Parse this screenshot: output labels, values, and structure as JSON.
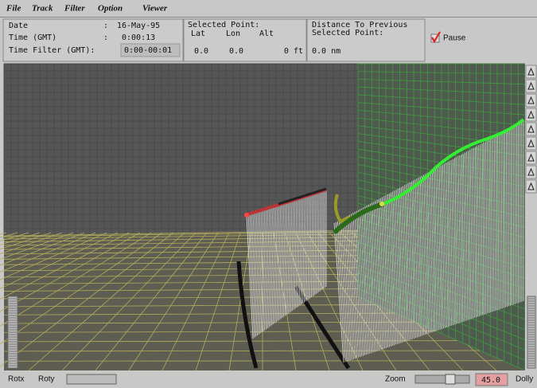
{
  "menu": [
    "File",
    "Track",
    "Filter",
    "Option",
    "Viewer"
  ],
  "info": {
    "rows": [
      {
        "label": "Date",
        "sep": ":",
        "value": "16-May-95"
      },
      {
        "label": "Time (GMT)",
        "sep": ":",
        "value": "0:00:13"
      },
      {
        "label": "Time Filter (GMT):",
        "value": "0:00-00:01"
      }
    ],
    "selected": {
      "title": "Selected Point:",
      "columns": [
        "Lat",
        "Lon",
        "Alt"
      ],
      "values": [
        "0.0",
        "0.0",
        "0 ft"
      ]
    },
    "distance": {
      "title": [
        "Distance To Previous",
        "Selected Point:"
      ],
      "value": "0.0 nm"
    },
    "pause": "Pause"
  },
  "bottom": {
    "rotx": "Rotx",
    "roty": "Roty",
    "zoom": "Zoom",
    "zoom_value": "45.0",
    "dolly": "Dolly"
  }
}
